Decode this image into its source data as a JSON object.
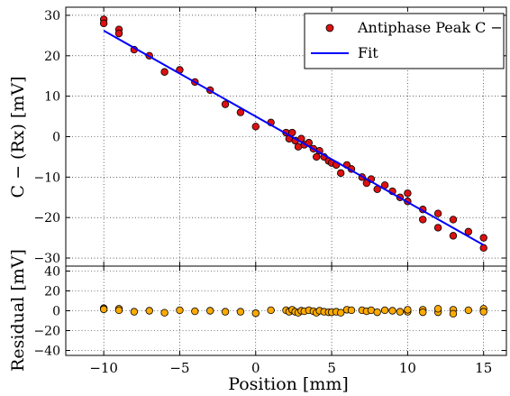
{
  "chart_data": [
    {
      "type": "scatter",
      "panel": "main",
      "xlabel": "",
      "ylabel": "C − (Rx) [mV]",
      "xlim": [
        -12.5,
        16.5
      ],
      "ylim": [
        -32,
        32
      ],
      "x_ticks": [
        -10,
        -5,
        0,
        5,
        10,
        15
      ],
      "y_ticks": [
        -30,
        -20,
        -10,
        0,
        10,
        20,
        30
      ],
      "x_tick_labels_visible": false,
      "grid": true,
      "grid_style": "dotted",
      "legend_position": "top-right",
      "series": [
        {
          "name": "Antiphase Peak C −",
          "kind": "markers",
          "color": "#dd1111",
          "x": [
            -10,
            -10,
            -9,
            -9,
            -8,
            -7,
            -6,
            -5,
            -4,
            -3,
            -2,
            -1,
            0,
            1,
            2,
            2.2,
            2.4,
            2.6,
            2.8,
            3,
            3.2,
            3.5,
            3.8,
            4,
            4.2,
            4.5,
            4.8,
            5,
            5.3,
            5.6,
            6,
            6.3,
            7,
            7.3,
            7.6,
            8,
            8.5,
            9,
            9.5,
            10,
            10,
            11,
            11,
            12,
            12,
            13,
            13,
            14,
            15,
            15
          ],
          "y": [
            29,
            28,
            26.5,
            25.5,
            21.5,
            20,
            16,
            16.5,
            13.5,
            11.5,
            8,
            6,
            2.5,
            3.5,
            1,
            -0.5,
            1,
            -1,
            -2.5,
            -0.5,
            -2,
            -1.5,
            -3,
            -5,
            -3.5,
            -5,
            -6,
            -6.5,
            -7,
            -9,
            -7,
            -8,
            -10,
            -11.5,
            -10.5,
            -13,
            -12,
            -13.5,
            -15,
            -16,
            -14,
            -18,
            -20.5,
            -22.5,
            -19,
            -20.5,
            -24.5,
            -23.5,
            -25,
            -27.5
          ]
        },
        {
          "name": "Fit",
          "kind": "line",
          "color": "#0000ff",
          "x": [
            -10,
            15
          ],
          "y": [
            26.2,
            -26.8
          ]
        }
      ]
    },
    {
      "type": "scatter",
      "panel": "residual",
      "xlabel": "Position [mm]",
      "ylabel": "Residual [mV]",
      "xlim": [
        -12.5,
        16.5
      ],
      "ylim": [
        -45,
        45
      ],
      "x_ticks": [
        -10,
        -5,
        0,
        5,
        10,
        15
      ],
      "y_ticks": [
        -40,
        -20,
        0,
        20,
        40
      ],
      "grid": true,
      "grid_style": "dotted",
      "series": [
        {
          "name": "",
          "kind": "markers",
          "color": "#ffaa00",
          "x": [
            -10,
            -10,
            -9,
            -9,
            -8,
            -7,
            -6,
            -5,
            -4,
            -3,
            -2,
            -1,
            0,
            1,
            2,
            2.2,
            2.4,
            2.6,
            2.8,
            3,
            3.2,
            3.5,
            3.8,
            4,
            4.2,
            4.5,
            4.8,
            5,
            5.3,
            5.6,
            6,
            6.3,
            7,
            7.3,
            7.6,
            8,
            8.5,
            9,
            9.5,
            10,
            10,
            11,
            11,
            12,
            12,
            13,
            13,
            14,
            15,
            15
          ],
          "y": [
            2.5,
            1.5,
            2,
            0.5,
            -1,
            0,
            -2,
            0.5,
            -0.5,
            0,
            -1,
            -1,
            -2.5,
            0.5,
            0.5,
            -1,
            1,
            -1,
            -2,
            0,
            -0.5,
            0.5,
            -0.5,
            -2,
            0,
            -1,
            -1.5,
            -1.5,
            -1,
            -2,
            1,
            0.5,
            0.5,
            -0.5,
            0.5,
            -1.5,
            0.5,
            0,
            -1,
            -1,
            1,
            1,
            -1.5,
            -1.5,
            2,
            1,
            -3,
            0.5,
            2,
            -1
          ]
        }
      ]
    }
  ]
}
